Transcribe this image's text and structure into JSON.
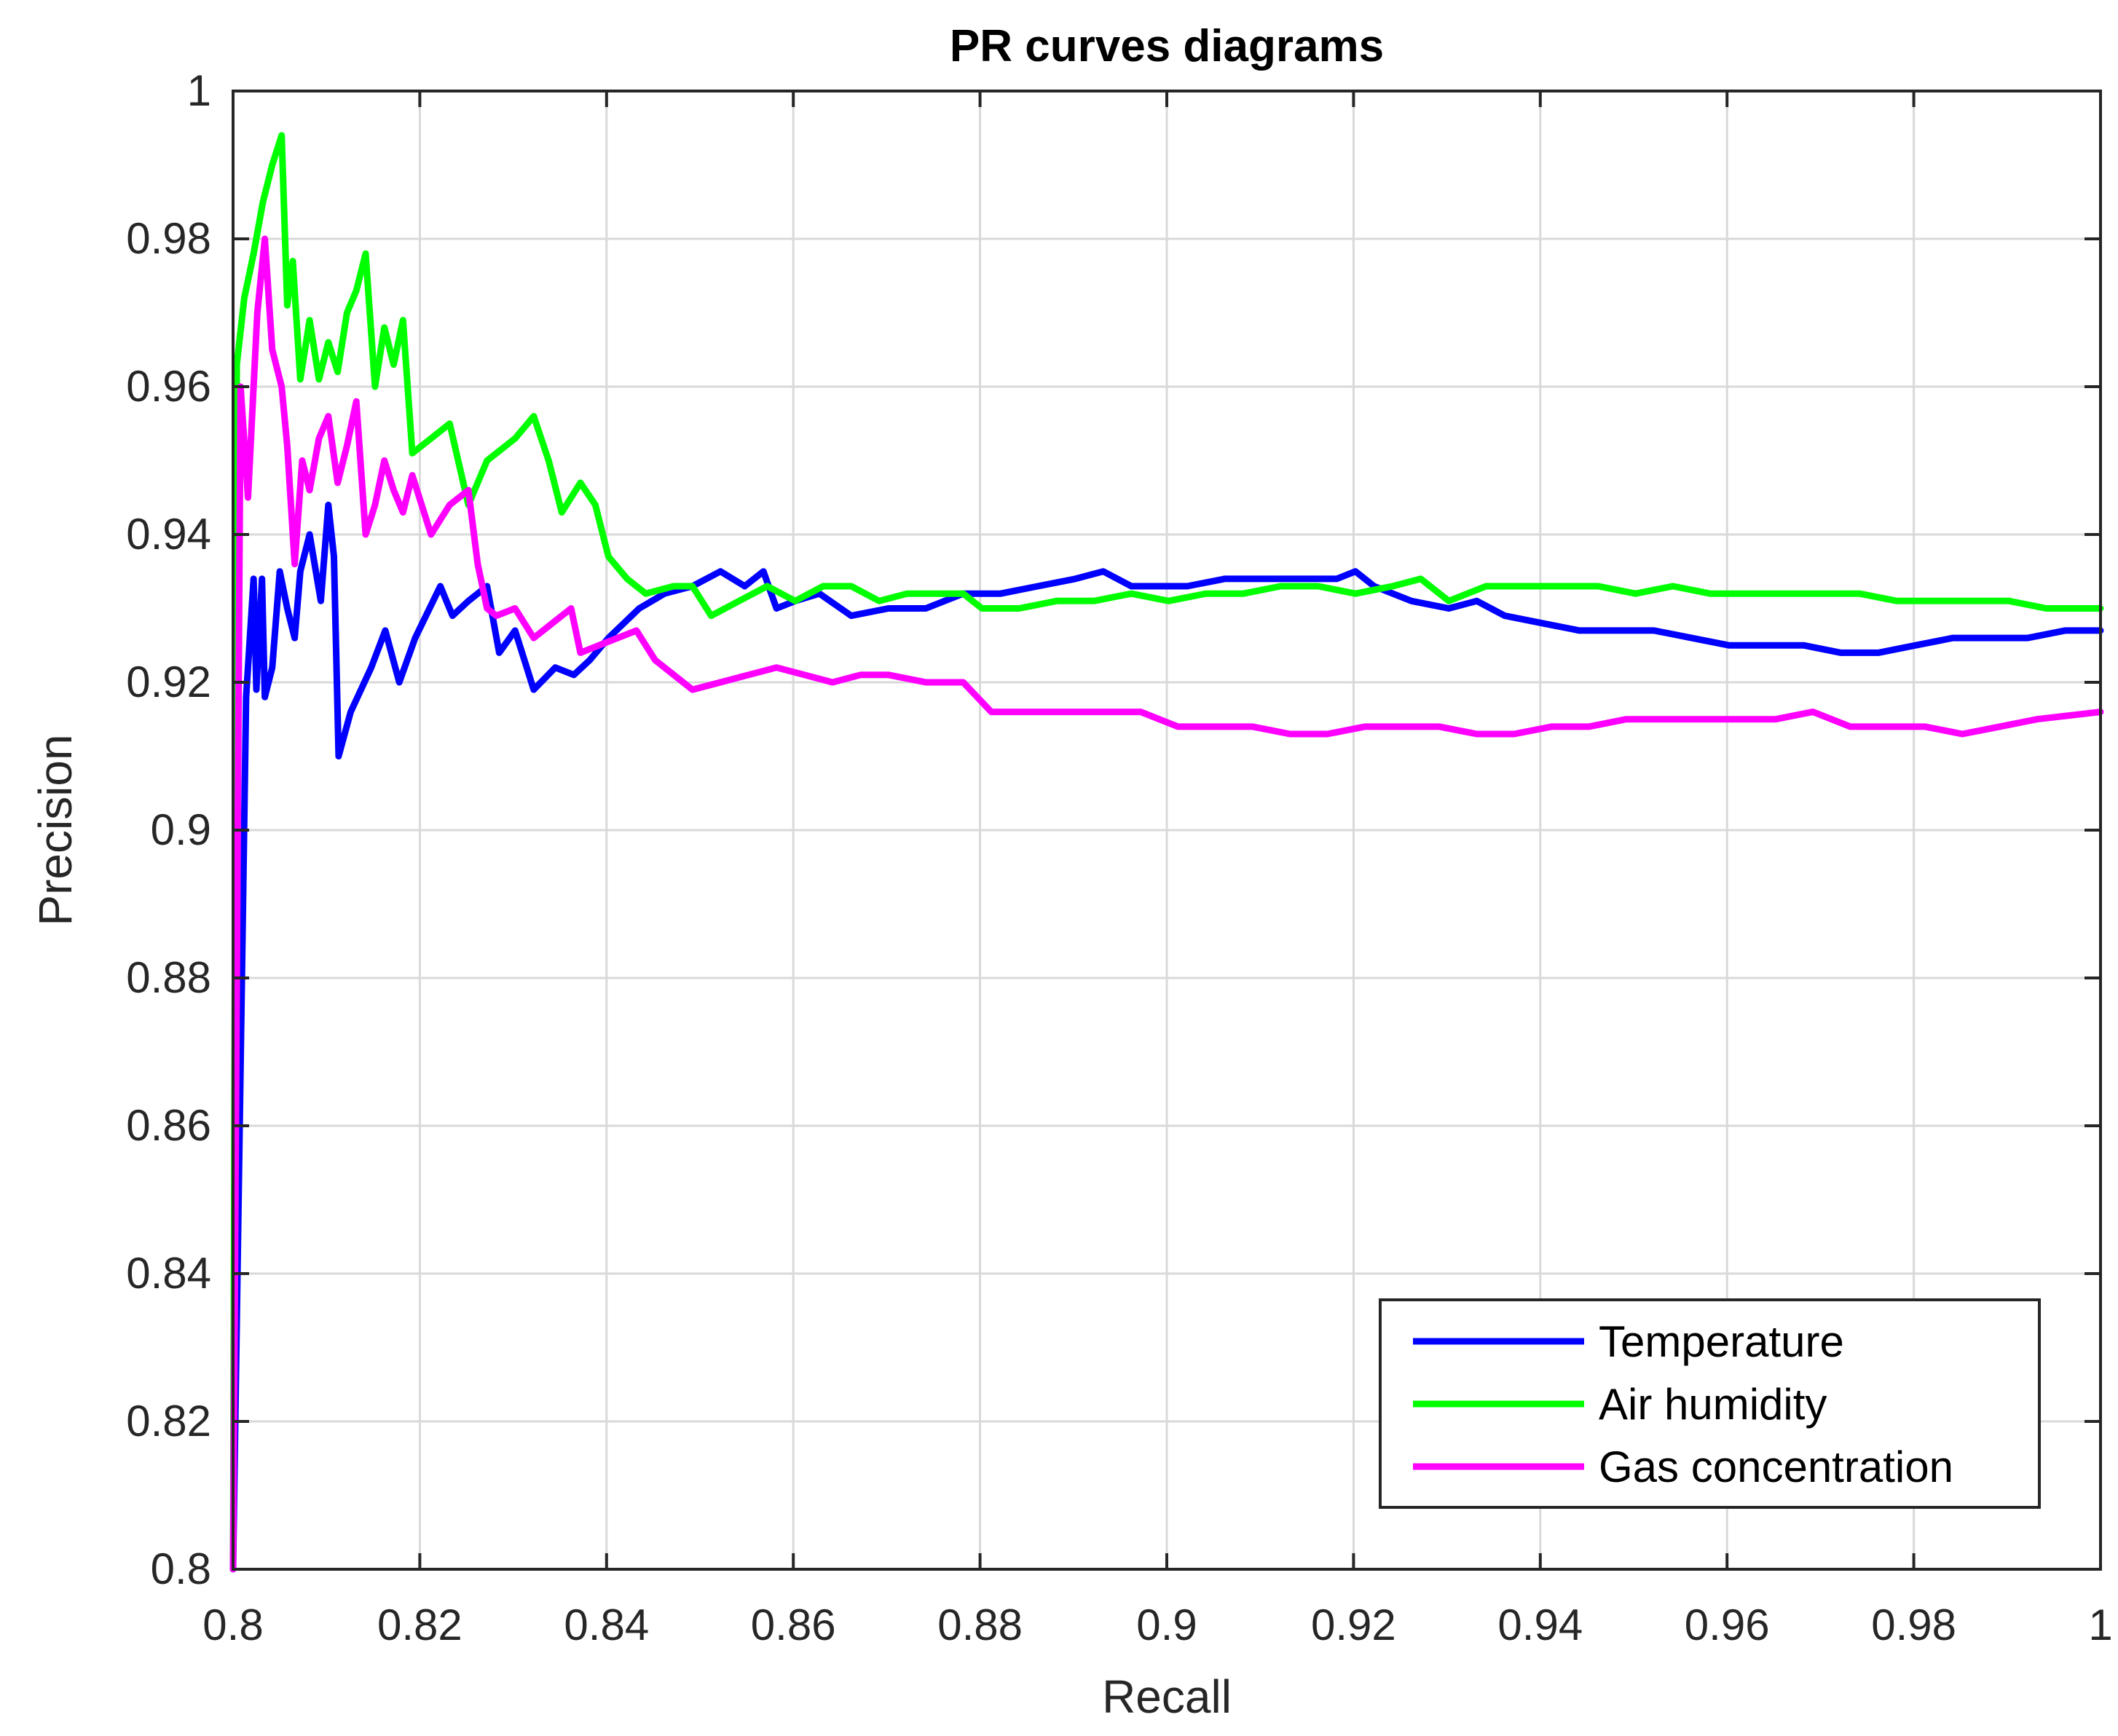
{
  "chart_data": {
    "type": "line",
    "title": "PR curves diagrams",
    "xlabel": "Recall",
    "ylabel": "Precision",
    "xlim": [
      0.8,
      1.0
    ],
    "ylim": [
      0.8,
      1.0
    ],
    "xticks": [
      "0.8",
      "0.82",
      "0.84",
      "0.86",
      "0.88",
      "0.9",
      "0.92",
      "0.94",
      "0.96",
      "0.98",
      "1"
    ],
    "yticks": [
      "0.8",
      "0.82",
      "0.84",
      "0.86",
      "0.88",
      "0.9",
      "0.92",
      "0.94",
      "0.96",
      "0.98",
      "1"
    ],
    "grid": true,
    "legend_position": "bottom-right",
    "series": [
      {
        "name": "Temperature",
        "color": "#0000ff",
        "points": [
          [
            0.8,
            0.8
          ],
          [
            0.8014,
            0.918
          ],
          [
            0.8022,
            0.934
          ],
          [
            0.8025,
            0.919
          ],
          [
            0.8031,
            0.934
          ],
          [
            0.8034,
            0.918
          ],
          [
            0.8042,
            0.922
          ],
          [
            0.805,
            0.935
          ],
          [
            0.8058,
            0.93
          ],
          [
            0.8066,
            0.926
          ],
          [
            0.8072,
            0.935
          ],
          [
            0.8082,
            0.94
          ],
          [
            0.8094,
            0.931
          ],
          [
            0.8102,
            0.944
          ],
          [
            0.8108,
            0.937
          ],
          [
            0.8113,
            0.91
          ],
          [
            0.8126,
            0.916
          ],
          [
            0.8148,
            0.922
          ],
          [
            0.8163,
            0.927
          ],
          [
            0.8178,
            0.92
          ],
          [
            0.8195,
            0.926
          ],
          [
            0.8222,
            0.933
          ],
          [
            0.8235,
            0.929
          ],
          [
            0.8252,
            0.931
          ],
          [
            0.8272,
            0.933
          ],
          [
            0.8285,
            0.924
          ],
          [
            0.8302,
            0.927
          ],
          [
            0.8322,
            0.919
          ],
          [
            0.8345,
            0.922
          ],
          [
            0.8365,
            0.921
          ],
          [
            0.8382,
            0.923
          ],
          [
            0.8402,
            0.926
          ],
          [
            0.8435,
            0.93
          ],
          [
            0.8462,
            0.932
          ],
          [
            0.8492,
            0.933
          ],
          [
            0.8522,
            0.935
          ],
          [
            0.8548,
            0.933
          ],
          [
            0.8568,
            0.935
          ],
          [
            0.8582,
            0.93
          ],
          [
            0.8602,
            0.931
          ],
          [
            0.8628,
            0.932
          ],
          [
            0.8662,
            0.929
          ],
          [
            0.8702,
            0.93
          ],
          [
            0.8742,
            0.93
          ],
          [
            0.8782,
            0.932
          ],
          [
            0.8822,
            0.932
          ],
          [
            0.8862,
            0.933
          ],
          [
            0.8902,
            0.934
          ],
          [
            0.8932,
            0.935
          ],
          [
            0.8962,
            0.933
          ],
          [
            0.8992,
            0.933
          ],
          [
            0.9022,
            0.933
          ],
          [
            0.9062,
            0.934
          ],
          [
            0.9102,
            0.934
          ],
          [
            0.9142,
            0.934
          ],
          [
            0.9182,
            0.934
          ],
          [
            0.9202,
            0.935
          ],
          [
            0.9222,
            0.933
          ],
          [
            0.9262,
            0.931
          ],
          [
            0.9302,
            0.93
          ],
          [
            0.9332,
            0.931
          ],
          [
            0.9362,
            0.929
          ],
          [
            0.9402,
            0.928
          ],
          [
            0.9442,
            0.927
          ],
          [
            0.9482,
            0.927
          ],
          [
            0.9522,
            0.927
          ],
          [
            0.9562,
            0.926
          ],
          [
            0.9602,
            0.925
          ],
          [
            0.9642,
            0.925
          ],
          [
            0.9682,
            0.925
          ],
          [
            0.9722,
            0.924
          ],
          [
            0.9762,
            0.924
          ],
          [
            0.9802,
            0.925
          ],
          [
            0.9842,
            0.926
          ],
          [
            0.9882,
            0.926
          ],
          [
            0.9922,
            0.926
          ],
          [
            0.9962,
            0.927
          ],
          [
            1.0,
            0.927
          ]
        ]
      },
      {
        "name": "Air humidity",
        "color": "#00ff00",
        "points": [
          [
            0.8,
            0.8
          ],
          [
            0.8004,
            0.963
          ],
          [
            0.8012,
            0.972
          ],
          [
            0.8022,
            0.978
          ],
          [
            0.8032,
            0.985
          ],
          [
            0.8042,
            0.99
          ],
          [
            0.8052,
            0.994
          ],
          [
            0.8058,
            0.971
          ],
          [
            0.8064,
            0.977
          ],
          [
            0.8072,
            0.961
          ],
          [
            0.8082,
            0.969
          ],
          [
            0.8092,
            0.961
          ],
          [
            0.8102,
            0.966
          ],
          [
            0.8112,
            0.962
          ],
          [
            0.8122,
            0.97
          ],
          [
            0.8132,
            0.973
          ],
          [
            0.8142,
            0.978
          ],
          [
            0.8152,
            0.96
          ],
          [
            0.8162,
            0.968
          ],
          [
            0.8172,
            0.963
          ],
          [
            0.8182,
            0.969
          ],
          [
            0.8192,
            0.951
          ],
          [
            0.8212,
            0.953
          ],
          [
            0.8232,
            0.955
          ],
          [
            0.8252,
            0.944
          ],
          [
            0.8272,
            0.95
          ],
          [
            0.8302,
            0.953
          ],
          [
            0.8322,
            0.956
          ],
          [
            0.8338,
            0.95
          ],
          [
            0.8352,
            0.943
          ],
          [
            0.8372,
            0.947
          ],
          [
            0.8388,
            0.944
          ],
          [
            0.8402,
            0.937
          ],
          [
            0.8422,
            0.934
          ],
          [
            0.8442,
            0.932
          ],
          [
            0.8472,
            0.933
          ],
          [
            0.8492,
            0.933
          ],
          [
            0.8512,
            0.929
          ],
          [
            0.8542,
            0.931
          ],
          [
            0.8572,
            0.933
          ],
          [
            0.8602,
            0.931
          ],
          [
            0.8632,
            0.933
          ],
          [
            0.8662,
            0.933
          ],
          [
            0.8692,
            0.931
          ],
          [
            0.8722,
            0.932
          ],
          [
            0.8752,
            0.932
          ],
          [
            0.8782,
            0.932
          ],
          [
            0.8802,
            0.93
          ],
          [
            0.8842,
            0.93
          ],
          [
            0.8882,
            0.931
          ],
          [
            0.8922,
            0.931
          ],
          [
            0.8962,
            0.932
          ],
          [
            0.9002,
            0.931
          ],
          [
            0.9042,
            0.932
          ],
          [
            0.9082,
            0.932
          ],
          [
            0.9122,
            0.933
          ],
          [
            0.9162,
            0.933
          ],
          [
            0.9202,
            0.932
          ],
          [
            0.9242,
            0.933
          ],
          [
            0.9272,
            0.934
          ],
          [
            0.9302,
            0.931
          ],
          [
            0.9342,
            0.933
          ],
          [
            0.9382,
            0.933
          ],
          [
            0.9422,
            0.933
          ],
          [
            0.9462,
            0.933
          ],
          [
            0.9502,
            0.932
          ],
          [
            0.9542,
            0.933
          ],
          [
            0.9582,
            0.932
          ],
          [
            0.9622,
            0.932
          ],
          [
            0.9662,
            0.932
          ],
          [
            0.9702,
            0.932
          ],
          [
            0.9742,
            0.932
          ],
          [
            0.9782,
            0.931
          ],
          [
            0.9822,
            0.931
          ],
          [
            0.9862,
            0.931
          ],
          [
            0.9902,
            0.931
          ],
          [
            0.9942,
            0.93
          ],
          [
            1.0,
            0.93
          ]
        ]
      },
      {
        "name": "Gas concentration",
        "color": "#ff00ff",
        "points": [
          [
            0.8,
            0.8
          ],
          [
            0.8008,
            0.96
          ],
          [
            0.8016,
            0.945
          ],
          [
            0.8026,
            0.97
          ],
          [
            0.8034,
            0.98
          ],
          [
            0.8042,
            0.965
          ],
          [
            0.8052,
            0.96
          ],
          [
            0.8058,
            0.952
          ],
          [
            0.8066,
            0.936
          ],
          [
            0.8074,
            0.95
          ],
          [
            0.8082,
            0.946
          ],
          [
            0.8092,
            0.953
          ],
          [
            0.8102,
            0.956
          ],
          [
            0.8112,
            0.947
          ],
          [
            0.8122,
            0.952
          ],
          [
            0.8132,
            0.958
          ],
          [
            0.8142,
            0.94
          ],
          [
            0.8152,
            0.944
          ],
          [
            0.8162,
            0.95
          ],
          [
            0.8172,
            0.946
          ],
          [
            0.8182,
            0.943
          ],
          [
            0.8192,
            0.948
          ],
          [
            0.8212,
            0.94
          ],
          [
            0.8232,
            0.944
          ],
          [
            0.8252,
            0.946
          ],
          [
            0.8262,
            0.936
          ],
          [
            0.8272,
            0.93
          ],
          [
            0.8282,
            0.929
          ],
          [
            0.8302,
            0.93
          ],
          [
            0.8322,
            0.926
          ],
          [
            0.8342,
            0.928
          ],
          [
            0.8362,
            0.93
          ],
          [
            0.8372,
            0.924
          ],
          [
            0.8392,
            0.925
          ],
          [
            0.8412,
            0.926
          ],
          [
            0.8432,
            0.927
          ],
          [
            0.8452,
            0.923
          ],
          [
            0.8472,
            0.921
          ],
          [
            0.8492,
            0.919
          ],
          [
            0.8522,
            0.92
          ],
          [
            0.8552,
            0.921
          ],
          [
            0.8582,
            0.922
          ],
          [
            0.8612,
            0.921
          ],
          [
            0.8642,
            0.92
          ],
          [
            0.8672,
            0.921
          ],
          [
            0.8702,
            0.921
          ],
          [
            0.8742,
            0.92
          ],
          [
            0.8782,
            0.92
          ],
          [
            0.8812,
            0.916
          ],
          [
            0.8852,
            0.916
          ],
          [
            0.8892,
            0.916
          ],
          [
            0.8932,
            0.916
          ],
          [
            0.8972,
            0.916
          ],
          [
            0.9012,
            0.914
          ],
          [
            0.9052,
            0.914
          ],
          [
            0.9092,
            0.914
          ],
          [
            0.9132,
            0.913
          ],
          [
            0.9172,
            0.913
          ],
          [
            0.9212,
            0.914
          ],
          [
            0.9252,
            0.914
          ],
          [
            0.9292,
            0.914
          ],
          [
            0.9332,
            0.913
          ],
          [
            0.9372,
            0.913
          ],
          [
            0.9412,
            0.914
          ],
          [
            0.9452,
            0.914
          ],
          [
            0.9492,
            0.915
          ],
          [
            0.9532,
            0.915
          ],
          [
            0.9572,
            0.915
          ],
          [
            0.9612,
            0.915
          ],
          [
            0.9652,
            0.915
          ],
          [
            0.9692,
            0.916
          ],
          [
            0.9732,
            0.914
          ],
          [
            0.9772,
            0.914
          ],
          [
            0.9812,
            0.914
          ],
          [
            0.9852,
            0.913
          ],
          [
            0.9892,
            0.914
          ],
          [
            0.9932,
            0.915
          ],
          [
            1.0,
            0.916
          ]
        ]
      }
    ]
  }
}
